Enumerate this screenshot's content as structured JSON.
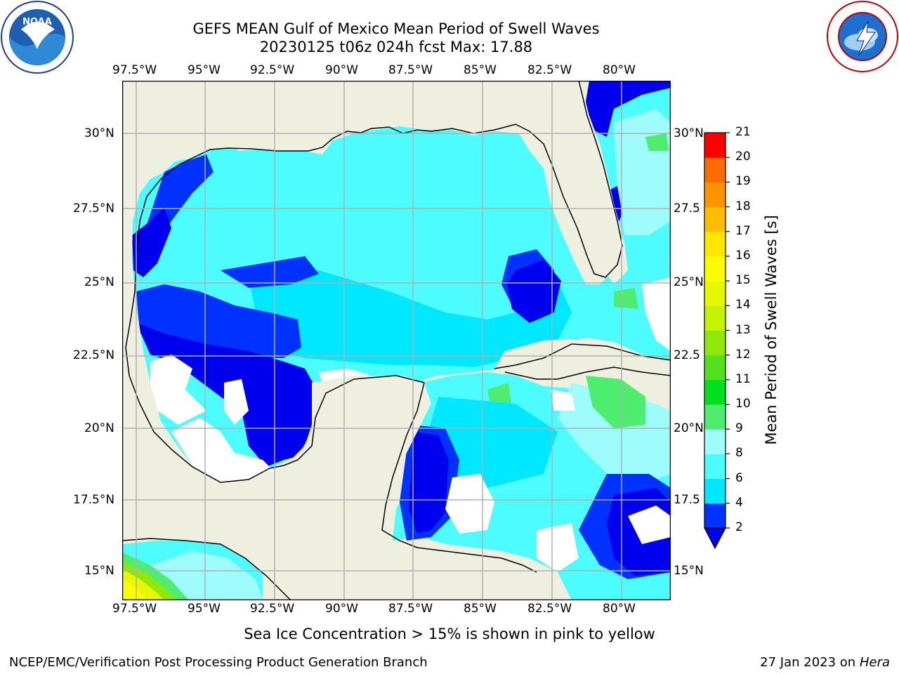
{
  "header": {
    "title_line1": "GEFS MEAN Gulf of Mexico Mean Period of Swell Waves",
    "title_line2": "20230125 t06z 024h fcst   Max: 17.88"
  },
  "logos": {
    "left": "noaa-logo",
    "right": "national-weather-service-logo"
  },
  "map": {
    "lon_ticks_top": [
      "97.5°W",
      "95°W",
      "92.5°W",
      "90°W",
      "87.5°W",
      "85°W",
      "82.5°W",
      "80°W"
    ],
    "lon_ticks_bottom": [
      "97.5°W",
      "95°W",
      "92.5°W",
      "90°W",
      "87.5°W",
      "85°W",
      "82.5°W",
      "80°W"
    ],
    "lat_ticks_left": [
      "30°N",
      "27.5°N",
      "25°N",
      "22.5°N",
      "20°N",
      "17.5°N",
      "15°N"
    ],
    "lat_ticks_right": [
      "30°N",
      "27.5",
      "25°N",
      "22.5",
      "20°N",
      "17.5",
      "15°N"
    ],
    "land_color": "#efefdf",
    "nodata_color": "#ffffff"
  },
  "colorbar": {
    "label": "Mean Period of Swell Waves [s]",
    "ticks": [
      "2",
      "4",
      "6",
      "8",
      "9",
      "10",
      "11",
      "12",
      "13",
      "14",
      "15",
      "16",
      "17",
      "18",
      "19",
      "20",
      "21"
    ],
    "colors": [
      "#0032ff",
      "#00e8ff",
      "#4dfcff",
      "#9efcfc",
      "#4eed70",
      "#00e020",
      "#52e21c",
      "#8fe80a",
      "#c4f200",
      "#e6f800",
      "#fcfc00",
      "#ffe600",
      "#ffbd00",
      "#ff9400",
      "#ff6b00",
      "#ff3200",
      "#ff0000"
    ],
    "below_color": "#0000ee"
  },
  "footer": {
    "sea_ice_note": "Sea Ice Concentration > 15% is shown in pink to yellow",
    "left": "NCEP/EMC/Verification Post Processing Product Generation Branch",
    "right_date": "27 Jan 2023 on ",
    "right_host": "Hera"
  }
}
